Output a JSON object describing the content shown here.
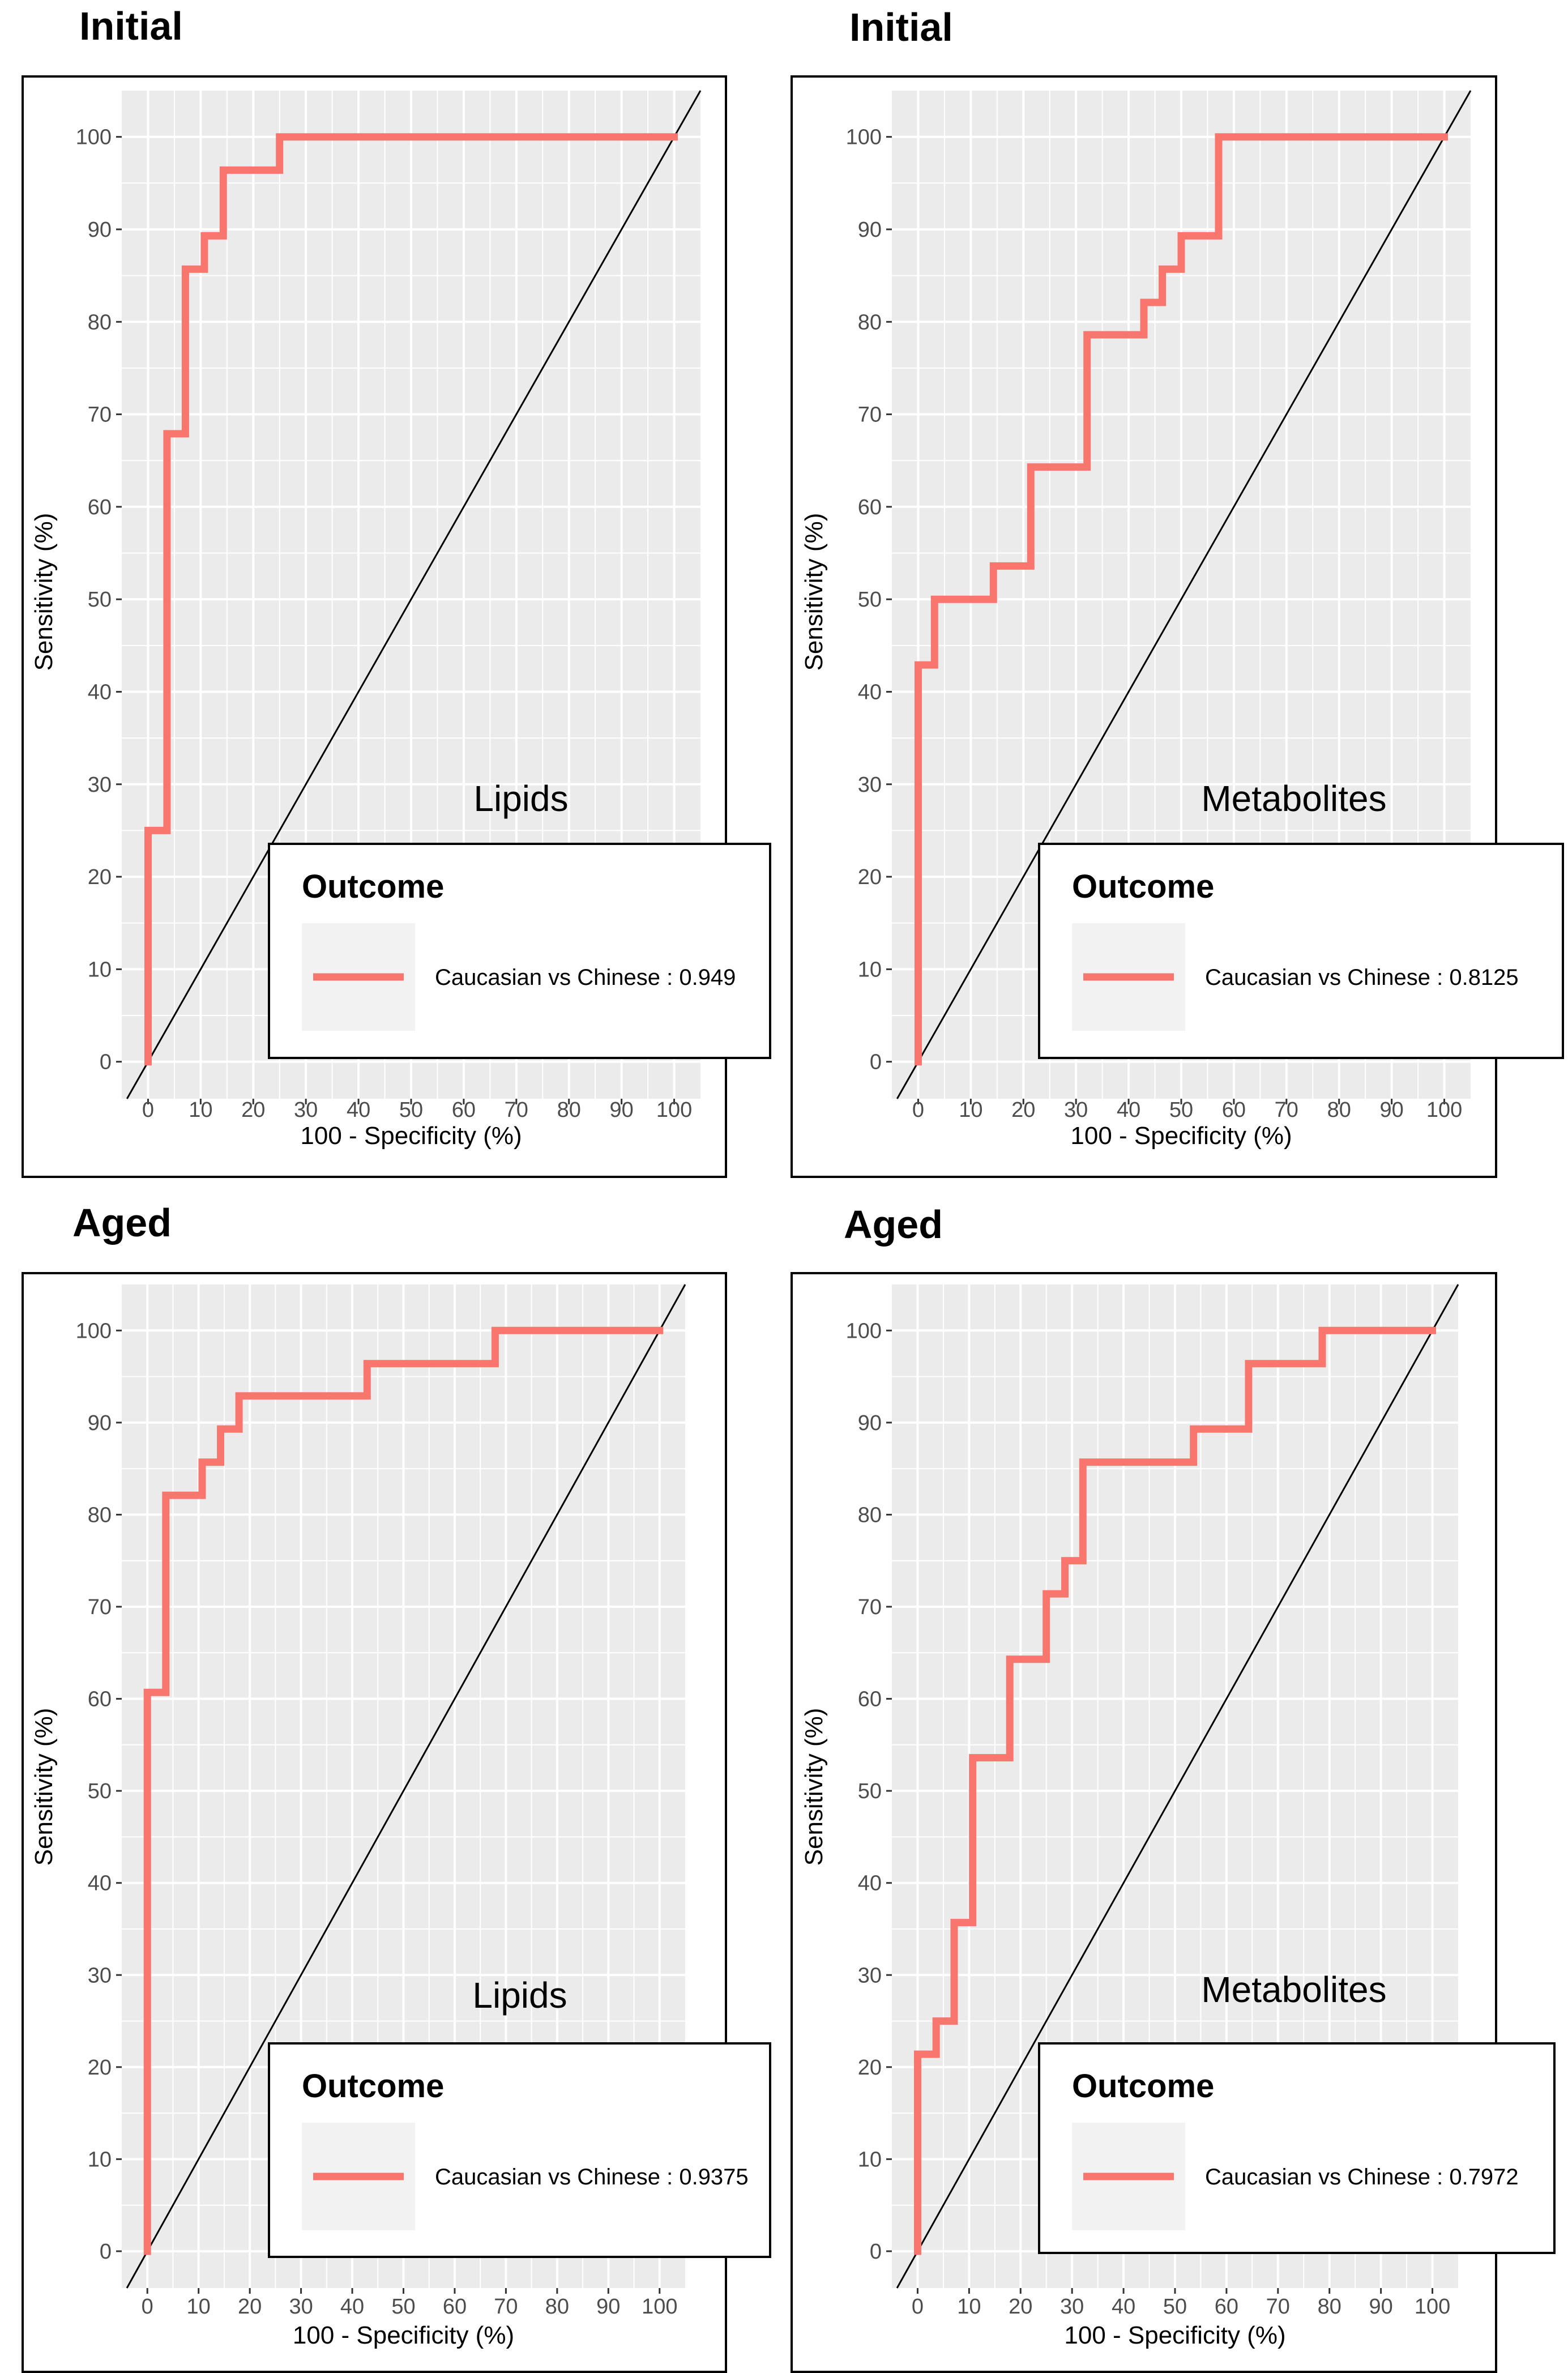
{
  "figure": {
    "panel_titles": [
      "Initial",
      "Initial",
      "Aged",
      "Aged"
    ]
  },
  "colors": {
    "roc_line": "#f8766d",
    "panel_bg": "#ebebeb",
    "grid": "#ffffff",
    "diagonal": "#000000",
    "legend_key_bg": "#f2f2f2"
  },
  "chart_data": [
    {
      "type": "line",
      "title": "Initial",
      "panel_label": "Lipids",
      "xlabel": "100 - Specificity (%)",
      "ylabel": "Sensitivity (%)",
      "xlim": [
        -5,
        105
      ],
      "ylim": [
        -4,
        105
      ],
      "x_ticks": [
        "0",
        "10",
        "20",
        "30",
        "40",
        "50",
        "60",
        "70",
        "80",
        "90",
        "100"
      ],
      "y_ticks": [
        "0",
        "10",
        "20",
        "30",
        "40",
        "50",
        "60",
        "70",
        "80",
        "90",
        "100"
      ],
      "diagonal": true,
      "legend": {
        "title": "Outcome",
        "entry": "Caucasian vs Chinese : 0.949"
      },
      "series": [
        {
          "name": "Caucasian vs Chinese",
          "auc": 0.949,
          "points": [
            [
              0,
              0
            ],
            [
              0,
              25
            ],
            [
              3.6,
              25
            ],
            [
              3.6,
              67.9
            ],
            [
              7.1,
              67.9
            ],
            [
              7.1,
              85.7
            ],
            [
              10.7,
              85.7
            ],
            [
              10.7,
              89.3
            ],
            [
              14.3,
              89.3
            ],
            [
              14.3,
              96.4
            ],
            [
              25,
              96.4
            ],
            [
              25,
              100
            ],
            [
              100,
              100
            ]
          ]
        }
      ]
    },
    {
      "type": "line",
      "title": "Initial",
      "panel_label": "Metabolites",
      "xlabel": "100 - Specificity (%)",
      "ylabel": "Sensitivity (%)",
      "xlim": [
        -5,
        105
      ],
      "ylim": [
        -4,
        105
      ],
      "x_ticks": [
        "0",
        "10",
        "20",
        "30",
        "40",
        "50",
        "60",
        "70",
        "80",
        "90",
        "100"
      ],
      "y_ticks": [
        "0",
        "10",
        "20",
        "30",
        "40",
        "50",
        "60",
        "70",
        "80",
        "90",
        "100"
      ],
      "diagonal": true,
      "legend": {
        "title": "Outcome",
        "entry": "Caucasian vs Chinese : 0.8125"
      },
      "series": [
        {
          "name": "Caucasian vs Chinese",
          "auc": 0.8125,
          "points": [
            [
              0,
              0
            ],
            [
              0,
              42.9
            ],
            [
              3.1,
              42.9
            ],
            [
              3.1,
              50
            ],
            [
              14.3,
              50
            ],
            [
              14.3,
              53.6
            ],
            [
              21.4,
              53.6
            ],
            [
              21.4,
              64.3
            ],
            [
              32.1,
              64.3
            ],
            [
              32.1,
              78.6
            ],
            [
              42.9,
              78.6
            ],
            [
              42.9,
              82.1
            ],
            [
              46.4,
              82.1
            ],
            [
              46.4,
              85.7
            ],
            [
              50,
              85.7
            ],
            [
              50,
              89.3
            ],
            [
              57.1,
              89.3
            ],
            [
              57.1,
              100
            ],
            [
              100,
              100
            ]
          ]
        }
      ]
    },
    {
      "type": "line",
      "title": "Aged",
      "panel_label": "Lipids",
      "xlabel": "100 - Specificity (%)",
      "ylabel": "Sensitivity (%)",
      "xlim": [
        -5,
        105
      ],
      "ylim": [
        -4,
        105
      ],
      "x_ticks": [
        "0",
        "10",
        "20",
        "30",
        "40",
        "50",
        "60",
        "70",
        "80",
        "90",
        "100"
      ],
      "y_ticks": [
        "0",
        "10",
        "20",
        "30",
        "40",
        "50",
        "60",
        "70",
        "80",
        "90",
        "100"
      ],
      "diagonal": true,
      "legend": {
        "title": "Outcome",
        "entry": "Caucasian vs Chinese : 0.9375"
      },
      "series": [
        {
          "name": "Caucasian vs Chinese",
          "auc": 0.9375,
          "points": [
            [
              0,
              0
            ],
            [
              0,
              60.7
            ],
            [
              3.6,
              60.7
            ],
            [
              3.6,
              82.1
            ],
            [
              10.7,
              82.1
            ],
            [
              10.7,
              85.7
            ],
            [
              14.3,
              85.7
            ],
            [
              14.3,
              89.3
            ],
            [
              17.9,
              89.3
            ],
            [
              17.9,
              92.9
            ],
            [
              42.9,
              92.9
            ],
            [
              42.9,
              96.4
            ],
            [
              67.9,
              96.4
            ],
            [
              67.9,
              100
            ],
            [
              100,
              100
            ]
          ]
        }
      ]
    },
    {
      "type": "line",
      "title": "Aged",
      "panel_label": "Metabolites",
      "xlabel": "100 - Specificity (%)",
      "ylabel": "Sensitivity (%)",
      "xlim": [
        -5,
        105
      ],
      "ylim": [
        -4,
        105
      ],
      "x_ticks": [
        "0",
        "10",
        "20",
        "30",
        "40",
        "50",
        "60",
        "70",
        "80",
        "90",
        "100"
      ],
      "y_ticks": [
        "0",
        "10",
        "20",
        "30",
        "40",
        "50",
        "60",
        "70",
        "80",
        "90",
        "100"
      ],
      "diagonal": true,
      "legend": {
        "title": "Outcome",
        "entry": "Caucasian vs Chinese : 0.7972"
      },
      "series": [
        {
          "name": "Caucasian vs Chinese",
          "auc": 0.7972,
          "points": [
            [
              0,
              0
            ],
            [
              0,
              21.4
            ],
            [
              3.6,
              21.4
            ],
            [
              3.6,
              25
            ],
            [
              7.1,
              25
            ],
            [
              7.1,
              35.7
            ],
            [
              10.7,
              35.7
            ],
            [
              10.7,
              53.6
            ],
            [
              17.9,
              53.6
            ],
            [
              17.9,
              64.3
            ],
            [
              25,
              64.3
            ],
            [
              25,
              71.4
            ],
            [
              28.6,
              71.4
            ],
            [
              28.6,
              75
            ],
            [
              32.1,
              75
            ],
            [
              32.1,
              85.7
            ],
            [
              53.6,
              85.7
            ],
            [
              53.6,
              89.3
            ],
            [
              64.3,
              89.3
            ],
            [
              64.3,
              96.4
            ],
            [
              78.6,
              96.4
            ],
            [
              78.6,
              100
            ],
            [
              100,
              100
            ]
          ]
        }
      ]
    }
  ]
}
